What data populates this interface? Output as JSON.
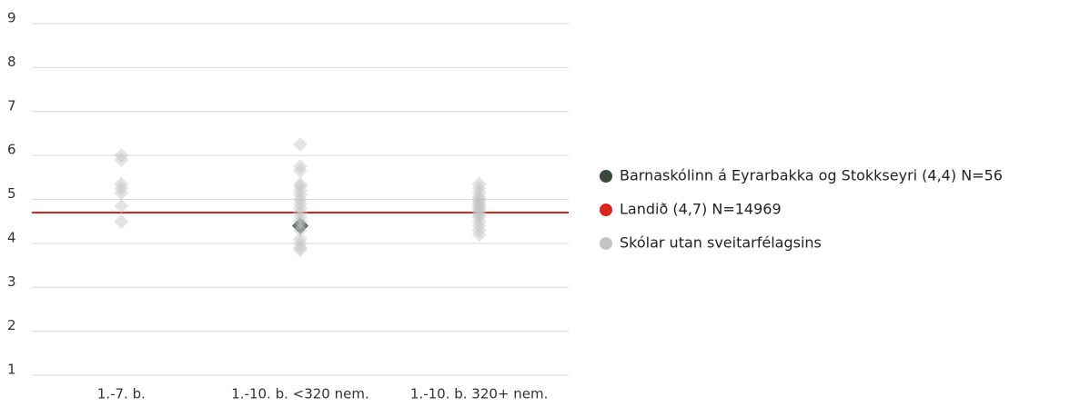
{
  "chart_data": {
    "type": "scatter",
    "categories": [
      "1.-7. b.",
      "1.-10. b. <320 nem.",
      "1.-10. b. 320+ nem."
    ],
    "ylim": [
      1,
      9
    ],
    "yticks": [
      1,
      2,
      3,
      4,
      5,
      6,
      7,
      8,
      9
    ],
    "grid": true,
    "legend": "right",
    "series": [
      {
        "name": "Barnaskólinn á Eyrarbakka og Stokkseyri (4,4) N=56",
        "color": "#3b4a3b",
        "values": [
          null,
          4.4,
          null
        ]
      },
      {
        "name": "Landið (4,7) N=14969",
        "color": "#d9261c",
        "value": 4.7
      },
      {
        "name": "Skólar utan sveitarfélagsins",
        "color": "#c4c4c4",
        "values": [
          [
            6.0,
            5.9,
            5.35,
            5.25,
            5.15,
            4.85,
            4.5
          ],
          [
            6.25,
            5.75,
            5.65,
            5.35,
            5.3,
            5.2,
            5.1,
            5.0,
            4.9,
            4.8,
            4.7,
            4.6,
            4.5,
            4.4,
            4.3,
            4.1,
            4.0,
            3.9,
            3.85
          ],
          [
            5.35,
            5.25,
            5.15,
            5.05,
            5.0,
            4.95,
            4.9,
            4.85,
            4.8,
            4.75,
            4.7,
            4.65,
            4.6,
            4.5,
            4.4,
            4.3,
            4.2
          ]
        ]
      }
    ]
  }
}
